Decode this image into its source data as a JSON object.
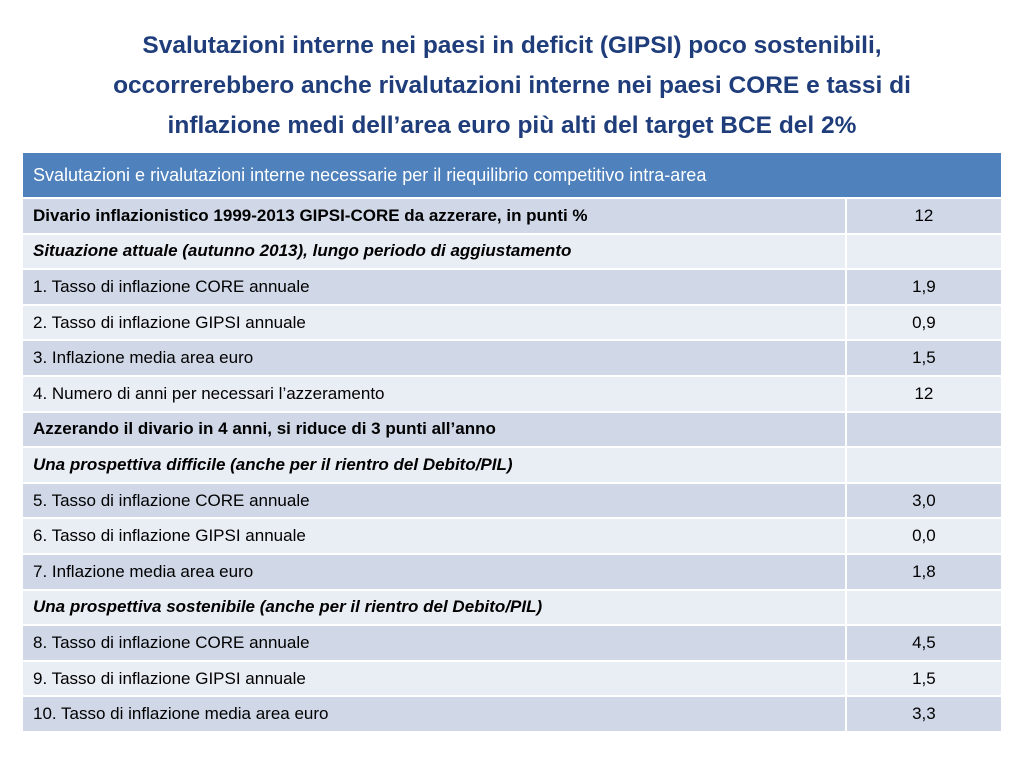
{
  "title_lines": [
    "Svalutazioni interne nei paesi in deficit (GIPSI) poco sostenibili,",
    "occorrerebbero  anche rivalutazioni interne nei paesi CORE e tassi di",
    "inflazione medi dell’area euro più alti del target BCE del 2%"
  ],
  "table": {
    "header": "Svalutazioni e rivalutazioni interne necessarie per il riequilibrio competitivo intra-area",
    "rows": [
      {
        "label": "Divario inflazionistico 1999-2013 GIPSI-CORE da azzerare, in punti %",
        "value": "12",
        "style": "bold"
      },
      {
        "label": "Situazione attuale (autunno 2013), lungo periodo di aggiustamento",
        "value": "",
        "style": "italic-bold"
      },
      {
        "label": "1. Tasso di inflazione CORE annuale",
        "value": "1,9",
        "style": "normal"
      },
      {
        "label": "2. Tasso di inflazione GIPSI annuale",
        "value": "0,9",
        "style": "normal"
      },
      {
        "label": "3. Inflazione media area euro",
        "value": "1,5",
        "style": "normal"
      },
      {
        "label": "4. Numero di anni per necessari l’azzeramento",
        "value": "12",
        "style": "normal"
      },
      {
        "label": "Azzerando il divario in 4 anni, si riduce di 3 punti all’anno",
        "value": "",
        "style": "bold"
      },
      {
        "label": "Una prospettiva difficile (anche per il rientro del Debito/PIL)",
        "value": "",
        "style": "italic-bold"
      },
      {
        "label": "5. Tasso di inflazione CORE annuale",
        "value": "3,0",
        "style": "normal"
      },
      {
        "label": "6. Tasso di inflazione GIPSI annuale",
        "value": "0,0",
        "style": "normal"
      },
      {
        "label": "7. Inflazione media area euro",
        "value": "1,8",
        "style": "normal"
      },
      {
        "label": "Una prospettiva sostenibile (anche per il rientro del Debito/PIL)",
        "value": "",
        "style": "italic-bold"
      },
      {
        "label": "8. Tasso di inflazione CORE annuale",
        "value": "4,5",
        "style": "normal"
      },
      {
        "label": "9. Tasso di inflazione GIPSI annuale",
        "value": "1,5",
        "style": "normal"
      },
      {
        "label": "10. Tasso di inflazione media area euro",
        "value": "3,3",
        "style": "normal"
      }
    ]
  },
  "colors": {
    "title": "#1f3d7a",
    "header_bg": "#4f81bd",
    "row_dark": "#d0d8e8",
    "row_light": "#e9edf4"
  }
}
